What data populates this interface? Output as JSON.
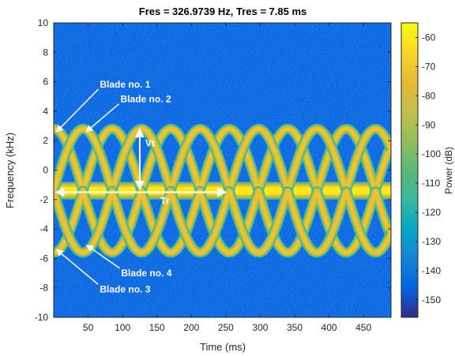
{
  "chart_data": {
    "type": "heatmap",
    "title": "Fres = 326.9739 Hz, Tres = 7.85 ms",
    "xlabel": "Time (ms)",
    "ylabel": "Frequency (kHz)",
    "xlim": [
      0,
      490
    ],
    "ylim": [
      -10,
      10
    ],
    "x_ticks": [
      50,
      100,
      150,
      200,
      250,
      300,
      350,
      400,
      450
    ],
    "y_ticks": [
      -10,
      -8,
      -6,
      -4,
      -2,
      0,
      2,
      4,
      6,
      8,
      10
    ],
    "colorbar": {
      "label": "Power (dB)",
      "range": [
        -156,
        -55
      ],
      "ticks": [
        -60,
        -70,
        -80,
        -90,
        -100,
        -110,
        -120,
        -130,
        -140,
        -150
      ],
      "colormap": "parula"
    },
    "background_power_db": -145,
    "series": [
      {
        "kind": "body-line",
        "frequency_khz": -1.4,
        "start_ms": 0,
        "end_ms": 490,
        "power_db": -60
      },
      {
        "kind": "blade-envelope",
        "center_khz": -1.4,
        "amplitude_khz": 4.2,
        "period_ms": 85,
        "start_ms": 0,
        "end_ms": 490,
        "power_db": -72
      },
      {
        "kind": "blade-envelope",
        "center_khz": -1.4,
        "amplitude_khz": 4.2,
        "period_ms": 85,
        "start_ms": 0,
        "end_ms": 490,
        "power_db": -72,
        "phase_offset": 0.5
      }
    ],
    "annotations": [
      {
        "text": "Blade no. 1",
        "x": 67,
        "y": 5.6,
        "arrow_to": [
          4,
          2.6
        ]
      },
      {
        "text": "Blade no. 2",
        "x": 97,
        "y": 4.6,
        "arrow_to": [
          47,
          2.6
        ]
      },
      {
        "text": "Blade no. 4",
        "x": 98,
        "y": -7.2,
        "arrow_to": [
          48,
          -5.1
        ]
      },
      {
        "text": "Blade no. 3",
        "x": 67,
        "y": -8.3,
        "arrow_to": [
          4,
          -5.4
        ]
      },
      {
        "text": "Vt",
        "x": 133,
        "y": 1.6,
        "arrow_from": [
          125,
          2.8
        ],
        "arrow_to": [
          125,
          -1.3
        ]
      },
      {
        "text": "Tr",
        "x": 155,
        "y": -2.3,
        "arrow_from": [
          3,
          -1.5
        ],
        "arrow_to": [
          250,
          -1.5
        ]
      }
    ]
  }
}
